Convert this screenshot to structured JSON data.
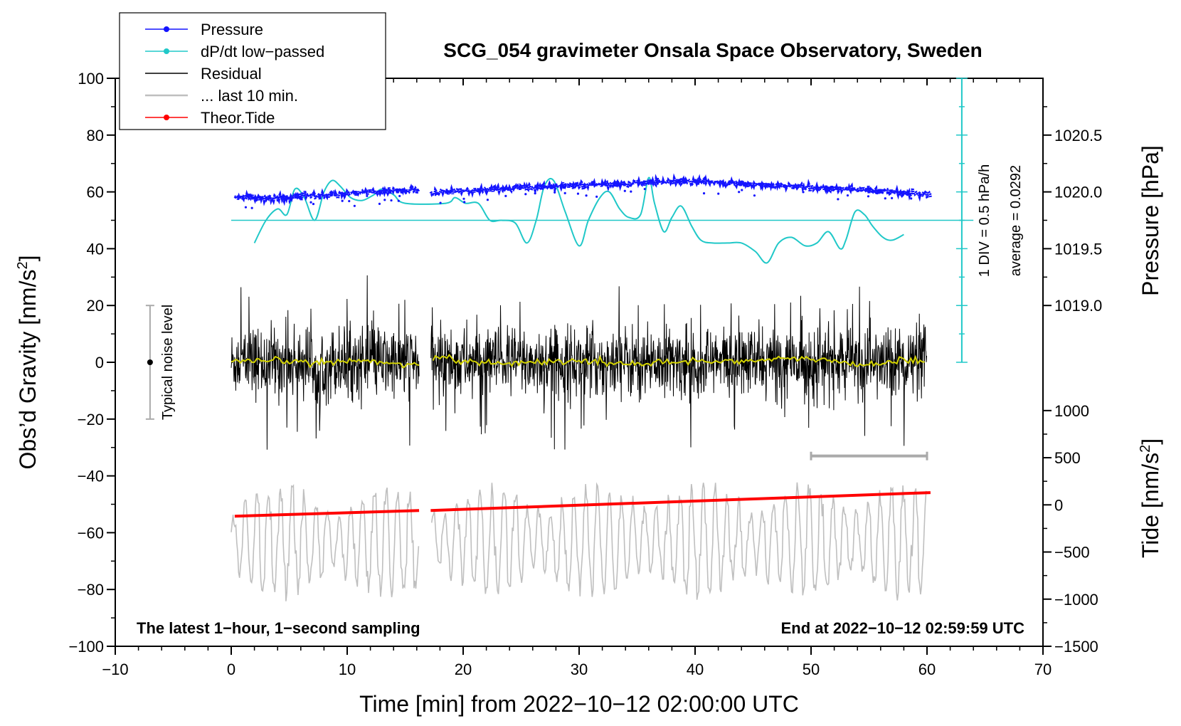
{
  "title": "SCG_054 gravimeter Onsala Space Observatory, Sweden",
  "colors": {
    "pressure": "#1414ff",
    "dpdt": "#20c8c8",
    "residual": "#000000",
    "last10": "#bfbfbf",
    "tide": "#ff0000",
    "running_mean": "#d2d200",
    "noise_bar": "#aaaaaa"
  },
  "chart_data": {
    "type": "line",
    "title": "SCG_054 gravimeter Onsala Space Observatory, Sweden",
    "xlabel": "Time [min] from 2022−10−12 02:00:00 UTC",
    "ylabel": "Obs’d Gravity [nm/s",
    "ylabel_sup": "2",
    "ylabel_end": "]",
    "right_label_pressure": "Pressure [hPa]",
    "right_label_tide": "Tide [nm/s",
    "right_label_tide_sup": "2",
    "right_label_tide_end": "]",
    "xlim": [
      -10,
      70
    ],
    "ylim": [
      -100,
      100
    ],
    "pressure_range_hPa": [
      1018.5,
      1021.0
    ],
    "tide_range_nm_s2": [
      -1500,
      1000
    ],
    "x_ticks": [
      {
        "v": -10,
        "label": "−10"
      },
      {
        "v": 0,
        "label": "0"
      },
      {
        "v": 10,
        "label": "10"
      },
      {
        "v": 20,
        "label": "20"
      },
      {
        "v": 30,
        "label": "30"
      },
      {
        "v": 40,
        "label": "40"
      },
      {
        "v": 50,
        "label": "50"
      },
      {
        "v": 60,
        "label": "60"
      },
      {
        "v": 70,
        "label": "70"
      }
    ],
    "y_ticks": [
      {
        "v": 100,
        "label": "100"
      },
      {
        "v": 80,
        "label": "80"
      },
      {
        "v": 60,
        "label": "60"
      },
      {
        "v": 40,
        "label": "40"
      },
      {
        "v": 20,
        "label": "20"
      },
      {
        "v": 0,
        "label": "0"
      },
      {
        "v": -20,
        "label": "−20"
      },
      {
        "v": -40,
        "label": "−40"
      },
      {
        "v": -60,
        "label": "−60"
      },
      {
        "v": -80,
        "label": "−80"
      },
      {
        "v": -100,
        "label": "−100"
      }
    ],
    "pressure_ticks": [
      {
        "v": 1020.5,
        "label": "1020.5"
      },
      {
        "v": 1020.0,
        "label": "1020.0"
      },
      {
        "v": 1019.5,
        "label": "1019.5"
      },
      {
        "v": 1019.0,
        "label": "1019.0"
      }
    ],
    "tide_ticks": [
      {
        "v": 1000,
        "label": "1000"
      },
      {
        "v": 500,
        "label": "500"
      },
      {
        "v": 0,
        "label": "0"
      },
      {
        "v": -500,
        "label": "−500"
      },
      {
        "v": -1000,
        "label": "−1000"
      },
      {
        "v": -1500,
        "label": "−1500"
      }
    ],
    "legend": {
      "position": "top-left",
      "entries": [
        {
          "label": "Pressure",
          "series": "pressure",
          "marker": true
        },
        {
          "label": "dP/dt low−passed",
          "series": "dpdt",
          "marker": true
        },
        {
          "label": "Residual",
          "series": "residual",
          "marker": false
        },
        {
          "label": "... last 10 min.",
          "series": "last10",
          "marker": false
        },
        {
          "label": "Theor.Tide",
          "series": "tide",
          "marker": true
        }
      ]
    },
    "data_gap_min": [
      16.2,
      17.2
    ],
    "series": {
      "pressure_hPa": {
        "name": "Pressure",
        "x": [
          0.3,
          2,
          4,
          6,
          8,
          10,
          12,
          14,
          16,
          17.5,
          20,
          22,
          24,
          26,
          28,
          30,
          32,
          34,
          36,
          38,
          40,
          42,
          44,
          46,
          48,
          50,
          52,
          54,
          56,
          58,
          60.3
        ],
        "y": [
          1019.96,
          1019.95,
          1019.94,
          1019.96,
          1019.97,
          1019.98,
          1020.0,
          1020.01,
          1020.02,
          1020.0,
          1020.01,
          1020.02,
          1020.03,
          1020.04,
          1020.05,
          1020.06,
          1020.07,
          1020.07,
          1020.08,
          1020.09,
          1020.09,
          1020.08,
          1020.07,
          1020.06,
          1020.05,
          1020.04,
          1020.03,
          1020.02,
          1020.01,
          1019.99,
          1019.98
        ]
      },
      "dpdt_low_passed": {
        "name": "dP/dt low−passed",
        "divisions_per_div": "0.5 hPa/h",
        "zero_level_nm_s2": 50,
        "x": [
          2.0,
          3.0,
          4.0,
          4.8,
          5.5,
          6.3,
          7.2,
          8.0,
          8.7,
          9.4,
          10.3,
          11.3,
          12.3,
          13.0,
          14.0,
          15.0,
          18.5,
          19.3,
          20.2,
          21.3,
          22.3,
          23.3,
          24.5,
          25.5,
          26.3,
          27.0,
          27.8,
          28.8,
          30.0,
          30.8,
          31.8,
          32.6,
          33.5,
          34.3,
          35.3,
          36.0,
          36.5,
          37.3,
          38.0,
          38.8,
          39.7,
          40.5,
          41.5,
          42.8,
          44.0,
          45.2,
          46.2,
          47.2,
          48.3,
          49.5,
          50.5,
          51.5,
          52.5,
          53.0,
          53.8,
          54.6,
          55.3,
          56.2,
          57.0,
          58.0
        ],
        "y": [
          42,
          50,
          54,
          52,
          61,
          58,
          50,
          60,
          64,
          62,
          58,
          57,
          59,
          61,
          59,
          56,
          56,
          58,
          56,
          56,
          50,
          50,
          49,
          42,
          50,
          62,
          64,
          53,
          41,
          50,
          58,
          60,
          54,
          51,
          52,
          65,
          56,
          46,
          51,
          55,
          48,
          43,
          42,
          42,
          42,
          39,
          35,
          42,
          44,
          41,
          42,
          46,
          40,
          43,
          53,
          52,
          48,
          44,
          43,
          45
        ]
      },
      "residual": {
        "name": "Residual",
        "x_range_min": [
          0,
          60
        ],
        "typical_envelope_nm_s2": 14,
        "max_spike_nm_s2": 31,
        "min_spike_nm_s2": -31
      },
      "running_mean": {
        "name": "running mean",
        "x": [
          0,
          4,
          8,
          12,
          16,
          17.5,
          20,
          24,
          28,
          32,
          36,
          40,
          44,
          48,
          50,
          54,
          58,
          60
        ],
        "y": [
          0,
          0.5,
          0,
          0.5,
          -1,
          2,
          0.5,
          -0.5,
          0.5,
          0,
          -0.5,
          0.5,
          0.5,
          1,
          1.5,
          -1,
          0.5,
          1
        ]
      },
      "last_10_min": {
        "name": "... last 10 min.",
        "baseline_nm_s2": -63,
        "amplitude_range_nm_s2": [
          -83,
          -32
        ]
      },
      "theoretical_tide": {
        "name": "Theor.Tide",
        "x": [
          0.3,
          16.2,
          17.2,
          60.3
        ],
        "y": [
          -120,
          -60,
          -60,
          130
        ]
      }
    },
    "annotations": {
      "noise_level_label": "Typical noise level",
      "noise_level_x_min": -7,
      "noise_level_range_nm_s2": [
        -20,
        20
      ],
      "last10_bar_x_min": [
        50,
        60
      ],
      "last10_bar_y_nm_s2": -33,
      "div_label": "1 DIV = 0.5 hPa/h",
      "average_label": "average = 0.0292",
      "div_scale_x_min": 63,
      "div_scale_range_nm_s2": [
        0,
        100
      ],
      "bottom_left_note": "The latest 1−hour, 1−second sampling",
      "bottom_right_note": "End at 2022−10−12 02:59:59 UTC"
    }
  }
}
